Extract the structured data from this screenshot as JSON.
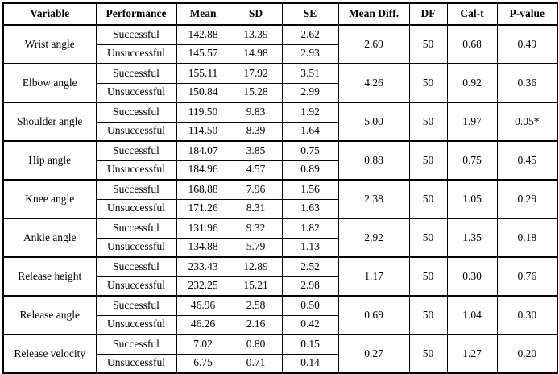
{
  "table": {
    "headers": [
      "Variable",
      "Performance",
      "Mean",
      "SD",
      "SE",
      "Mean Diff.",
      "DF",
      "Cal-t",
      "P-value"
    ],
    "groups": [
      {
        "variable": "Wrist angle",
        "rows": [
          {
            "performance": "Successful",
            "mean": "142.88",
            "sd": "13.39",
            "se": "2.62"
          },
          {
            "performance": "Unsuccessful",
            "mean": "145.57",
            "sd": "14.98",
            "se": "2.93"
          }
        ],
        "mean_diff": "2.69",
        "df": "50",
        "cal_t": "0.68",
        "p_value": "0.49"
      },
      {
        "variable": "Elbow angle",
        "rows": [
          {
            "performance": "Successful",
            "mean": "155.11",
            "sd": "17.92",
            "se": "3.51"
          },
          {
            "performance": "Unsuccessful",
            "mean": "150.84",
            "sd": "15.28",
            "se": "2.99"
          }
        ],
        "mean_diff": "4.26",
        "df": "50",
        "cal_t": "0.92",
        "p_value": "0.36"
      },
      {
        "variable": "Shoulder angle",
        "rows": [
          {
            "performance": "Successful",
            "mean": "119.50",
            "sd": "9.83",
            "se": "1.92"
          },
          {
            "performance": "Unsuccessful",
            "mean": "114.50",
            "sd": "8.39",
            "se": "1.64"
          }
        ],
        "mean_diff": "5.00",
        "df": "50",
        "cal_t": "1.97",
        "p_value": "0.05*"
      },
      {
        "variable": "Hip angle",
        "rows": [
          {
            "performance": "Successful",
            "mean": "184.07",
            "sd": "3.85",
            "se": "0.75"
          },
          {
            "performance": "Unsuccessful",
            "mean": "184.96",
            "sd": "4.57",
            "se": "0.89"
          }
        ],
        "mean_diff": "0.88",
        "df": "50",
        "cal_t": "0.75",
        "p_value": "0.45"
      },
      {
        "variable": "Knee angle",
        "rows": [
          {
            "performance": "Successful",
            "mean": "168.88",
            "sd": "7.96",
            "se": "1.56"
          },
          {
            "performance": "Unsuccessful",
            "mean": "171.26",
            "sd": "8.31",
            "se": "1.63"
          }
        ],
        "mean_diff": "2.38",
        "df": "50",
        "cal_t": "1.05",
        "p_value": "0.29"
      },
      {
        "variable": "Ankle angle",
        "rows": [
          {
            "performance": "Successful",
            "mean": "131.96",
            "sd": "9.32",
            "se": "1.82"
          },
          {
            "performance": "Unsuccessful",
            "mean": "134.88",
            "sd": "5.79",
            "se": "1.13"
          }
        ],
        "mean_diff": "2.92",
        "df": "50",
        "cal_t": "1.35",
        "p_value": "0.18"
      },
      {
        "variable": "Release height",
        "rows": [
          {
            "performance": "Successful",
            "mean": "233.43",
            "sd": "12.89",
            "se": "2.52"
          },
          {
            "performance": "Unsuccessful",
            "mean": "232.25",
            "sd": "15.21",
            "se": "2.98"
          }
        ],
        "mean_diff": "1.17",
        "df": "50",
        "cal_t": "0.30",
        "p_value": "0.76"
      },
      {
        "variable": "Release angle",
        "rows": [
          {
            "performance": "Successful",
            "mean": "46.96",
            "sd": "2.58",
            "se": "0.50"
          },
          {
            "performance": "Unsuccessful",
            "mean": "46.26",
            "sd": "2.16",
            "se": "0.42"
          }
        ],
        "mean_diff": "0.69",
        "df": "50",
        "cal_t": "1.04",
        "p_value": "0.30"
      },
      {
        "variable": "Release velocity",
        "rows": [
          {
            "performance": "Successful",
            "mean": "7.02",
            "sd": "0.80",
            "se": "0.15"
          },
          {
            "performance": "Unsuccessful",
            "mean": "6.75",
            "sd": "0.71",
            "se": "0.14"
          }
        ],
        "mean_diff": "0.27",
        "df": "50",
        "cal_t": "1.27",
        "p_value": "0.20"
      }
    ]
  }
}
